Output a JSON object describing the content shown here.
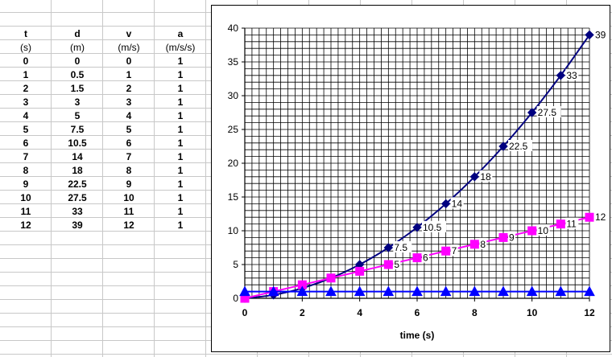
{
  "table": {
    "headers": [
      "t",
      "d",
      "v",
      "a"
    ],
    "units": [
      "(s)",
      "(m)",
      "(m/s)",
      "(m/s/s)"
    ],
    "rows": [
      [
        "0",
        "0",
        "0",
        "1"
      ],
      [
        "1",
        "0.5",
        "1",
        "1"
      ],
      [
        "2",
        "1.5",
        "2",
        "1"
      ],
      [
        "3",
        "3",
        "3",
        "1"
      ],
      [
        "4",
        "5",
        "4",
        "1"
      ],
      [
        "5",
        "7.5",
        "5",
        "1"
      ],
      [
        "6",
        "10.5",
        "6",
        "1"
      ],
      [
        "7",
        "14",
        "7",
        "1"
      ],
      [
        "8",
        "18",
        "8",
        "1"
      ],
      [
        "9",
        "22.5",
        "9",
        "1"
      ],
      [
        "10",
        "27.5",
        "10",
        "1"
      ],
      [
        "11",
        "33",
        "11",
        "1"
      ],
      [
        "12",
        "39",
        "12",
        "1"
      ]
    ]
  },
  "chart_data": {
    "type": "line",
    "xlabel": "time (s)",
    "ylabel": "",
    "title": "",
    "xlim": [
      0,
      12
    ],
    "ylim": [
      0,
      40
    ],
    "x_ticks": [
      0,
      2,
      4,
      6,
      8,
      10,
      12
    ],
    "y_ticks": [
      0,
      5,
      10,
      15,
      20,
      25,
      30,
      35,
      40
    ],
    "grid": true,
    "x": [
      0,
      1,
      2,
      3,
      4,
      5,
      6,
      7,
      8,
      9,
      10,
      11,
      12
    ],
    "series": [
      {
        "key": "d",
        "values": [
          0,
          0.5,
          1.5,
          3,
          5,
          7.5,
          10.5,
          14,
          18,
          22.5,
          27.5,
          33,
          39
        ],
        "labels": [
          "",
          "",
          "",
          "",
          "",
          "7.5",
          "10.5",
          "14",
          "18",
          "22.5",
          "27.5",
          "33",
          "39"
        ],
        "color": "#000080",
        "marker": "diamond"
      },
      {
        "key": "v",
        "values": [
          0,
          1,
          2,
          3,
          4,
          5,
          6,
          7,
          8,
          9,
          10,
          11,
          12
        ],
        "labels": [
          "",
          "",
          "",
          "",
          "",
          "5",
          "6",
          "7",
          "8",
          "9",
          "10",
          "11",
          "12"
        ],
        "color": "#ff00ff",
        "marker": "square"
      },
      {
        "key": "a",
        "values": [
          1,
          1,
          1,
          1,
          1,
          1,
          1,
          1,
          1,
          1,
          1,
          1,
          1
        ],
        "labels": [
          "",
          "",
          "",
          "",
          "",
          "",
          "",
          "",
          "",
          "",
          "",
          "",
          ""
        ],
        "color": "#0000ff",
        "marker": "triangle"
      }
    ]
  }
}
